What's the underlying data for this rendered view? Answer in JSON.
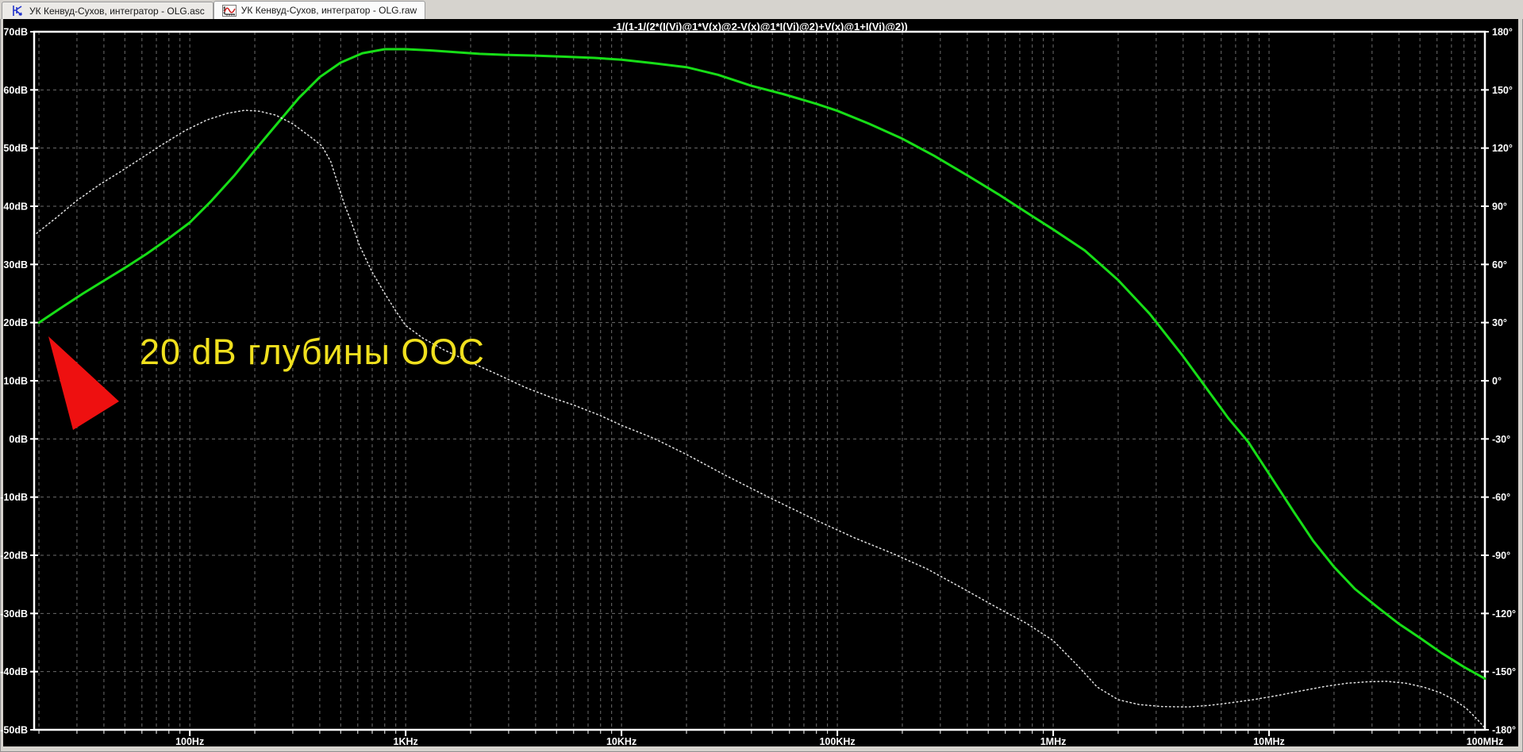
{
  "tabs": [
    {
      "label": "УК Кенвуд-Сухов, интегратор - OLG.asc",
      "icon": "schematic-icon",
      "active": false
    },
    {
      "label": "УК Кенвуд-Сухов, интегратор - OLG.raw",
      "icon": "waveform-icon",
      "active": true
    }
  ],
  "plot_title": "-1/(1-1/(2*(I(Vi)@1*V(x)@2-V(x)@1*I(Vi)@2)+V(x)@1+I(Vi)@2))",
  "annotation": {
    "text": "20 dB глубины ООС",
    "color": "#F0E01E",
    "arrow_color": "#EE1010"
  },
  "colors": {
    "pane_background": "#000000",
    "frame": "#D6D3CE",
    "axis": "#FFFFFF",
    "grid": "#6C6C6C",
    "magnitude_trace": "#17DE17",
    "phase_trace": "#E2E2E2",
    "annotation_text": "#F0E01E",
    "annotation_arrow": "#EE1010"
  },
  "chart_data": {
    "type": "line",
    "title": "-1/(1-1/(2*(I(Vi)@1*V(x)@2-V(x)@1*I(Vi)@2)+V(x)@1+I(Vi)@2))",
    "x_scale": "log",
    "x_range_hz": [
      19,
      100000000
    ],
    "grid": true,
    "y_left": {
      "unit": "dB",
      "min": -50,
      "max": 70,
      "step": 10,
      "tick_labels": [
        "70dB",
        "60dB",
        "50dB",
        "40dB",
        "30dB",
        "20dB",
        "10dB",
        "0dB",
        "-10dB",
        "-20dB",
        "-30dB",
        "-40dB",
        "-50dB"
      ]
    },
    "y_right": {
      "unit": "°",
      "min": -180,
      "max": 180,
      "step": 30,
      "tick_labels": [
        "180°",
        "150°",
        "120°",
        "90°",
        "60°",
        "30°",
        "0°",
        "-30°",
        "-60°",
        "-90°",
        "-120°",
        "-150°",
        "-180°"
      ]
    },
    "x_ticks": [
      {
        "f": 100,
        "label": "100Hz"
      },
      {
        "f": 1000,
        "label": "1KHz"
      },
      {
        "f": 10000,
        "label": "10KHz"
      },
      {
        "f": 100000,
        "label": "100KHz"
      },
      {
        "f": 1000000,
        "label": "1MHz"
      },
      {
        "f": 10000000,
        "label": "10MHz"
      },
      {
        "f": 100000000,
        "label": "100MHz"
      }
    ],
    "series": [
      {
        "name": "magnitude",
        "axis": "left",
        "unit": "dB",
        "style": "solid",
        "color": "#17DE17",
        "points": [
          [
            20,
            20
          ],
          [
            25,
            22.4
          ],
          [
            32,
            25
          ],
          [
            40,
            27.2
          ],
          [
            50,
            29.4
          ],
          [
            63,
            31.8
          ],
          [
            80,
            34.5
          ],
          [
            100,
            37.2
          ],
          [
            125,
            40.8
          ],
          [
            160,
            45.2
          ],
          [
            200,
            49.6
          ],
          [
            250,
            53.9
          ],
          [
            320,
            58.6
          ],
          [
            400,
            62.2
          ],
          [
            500,
            64.7
          ],
          [
            630,
            66.3
          ],
          [
            800,
            67.0
          ],
          [
            1000,
            67.0
          ],
          [
            1300,
            66.8
          ],
          [
            1700,
            66.5
          ],
          [
            2200,
            66.2
          ],
          [
            3000,
            66.0
          ],
          [
            4000,
            65.9
          ],
          [
            5500,
            65.7
          ],
          [
            7500,
            65.5
          ],
          [
            10000,
            65.2
          ],
          [
            14000,
            64.6
          ],
          [
            20000,
            63.9
          ],
          [
            28000,
            62.6
          ],
          [
            40000,
            60.7
          ],
          [
            56000,
            59.3
          ],
          [
            80000,
            57.6
          ],
          [
            100000,
            56.4
          ],
          [
            140000,
            54.2
          ],
          [
            200000,
            51.6
          ],
          [
            280000,
            48.7
          ],
          [
            400000,
            45.3
          ],
          [
            560000,
            42.0
          ],
          [
            800000,
            38.3
          ],
          [
            1000000,
            36.0
          ],
          [
            1400000,
            32.4
          ],
          [
            2000000,
            27.3
          ],
          [
            2800000,
            21.5
          ],
          [
            4000000,
            14.2
          ],
          [
            5300000,
            8.0
          ],
          [
            6500000,
            3.5
          ],
          [
            8000000,
            -0.5
          ],
          [
            10000000,
            -6.0
          ],
          [
            13000000,
            -12.5
          ],
          [
            16000000,
            -17.5
          ],
          [
            20000000,
            -22.0
          ],
          [
            25000000,
            -25.8
          ],
          [
            32000000,
            -29.0
          ],
          [
            40000000,
            -31.8
          ],
          [
            50000000,
            -34.2
          ],
          [
            63000000,
            -36.8
          ],
          [
            80000000,
            -39.2
          ],
          [
            100000000,
            -41.2
          ]
        ]
      },
      {
        "name": "phase",
        "axis": "right",
        "unit": "deg",
        "style": "dotted",
        "color": "#E2E2E2",
        "points": [
          [
            19.5,
            76
          ],
          [
            24,
            84
          ],
          [
            30,
            93
          ],
          [
            38,
            101
          ],
          [
            48,
            108
          ],
          [
            60,
            115
          ],
          [
            75,
            122
          ],
          [
            95,
            129
          ],
          [
            120,
            134.5
          ],
          [
            150,
            138
          ],
          [
            180,
            139.5
          ],
          [
            210,
            139
          ],
          [
            250,
            137
          ],
          [
            300,
            132.5
          ],
          [
            360,
            126
          ],
          [
            410,
            121
          ],
          [
            450,
            113
          ],
          [
            490,
            100
          ],
          [
            520,
            91
          ],
          [
            560,
            82
          ],
          [
            610,
            70
          ],
          [
            700,
            56
          ],
          [
            800,
            45
          ],
          [
            900,
            36
          ],
          [
            1000,
            28.5
          ],
          [
            1200,
            22
          ],
          [
            1500,
            16
          ],
          [
            2000,
            9.5
          ],
          [
            2700,
            3
          ],
          [
            3600,
            -3.5
          ],
          [
            4700,
            -8.5
          ],
          [
            6000,
            -12.5
          ],
          [
            8000,
            -18
          ],
          [
            10000,
            -23
          ],
          [
            14000,
            -29.5
          ],
          [
            20000,
            -38
          ],
          [
            30000,
            -48.5
          ],
          [
            50000,
            -61
          ],
          [
            80000,
            -72
          ],
          [
            120000,
            -81
          ],
          [
            180000,
            -89
          ],
          [
            260000,
            -97
          ],
          [
            380000,
            -107
          ],
          [
            550000,
            -117
          ],
          [
            750000,
            -125
          ],
          [
            1000000,
            -134
          ],
          [
            1300000,
            -147
          ],
          [
            1600000,
            -158
          ],
          [
            2000000,
            -164.5
          ],
          [
            2500000,
            -167
          ],
          [
            3200000,
            -168
          ],
          [
            4200000,
            -168.2
          ],
          [
            5300000,
            -167.4
          ],
          [
            6700000,
            -166
          ],
          [
            8500000,
            -164.4
          ],
          [
            11000000,
            -162.3
          ],
          [
            14000000,
            -160
          ],
          [
            18000000,
            -157.7
          ],
          [
            23000000,
            -156
          ],
          [
            29000000,
            -155.2
          ],
          [
            35000000,
            -155
          ],
          [
            43000000,
            -156
          ],
          [
            52000000,
            -158
          ],
          [
            62000000,
            -160.8
          ],
          [
            72000000,
            -164.5
          ],
          [
            82000000,
            -169
          ],
          [
            91000000,
            -174
          ],
          [
            100000000,
            -179
          ]
        ]
      }
    ]
  }
}
